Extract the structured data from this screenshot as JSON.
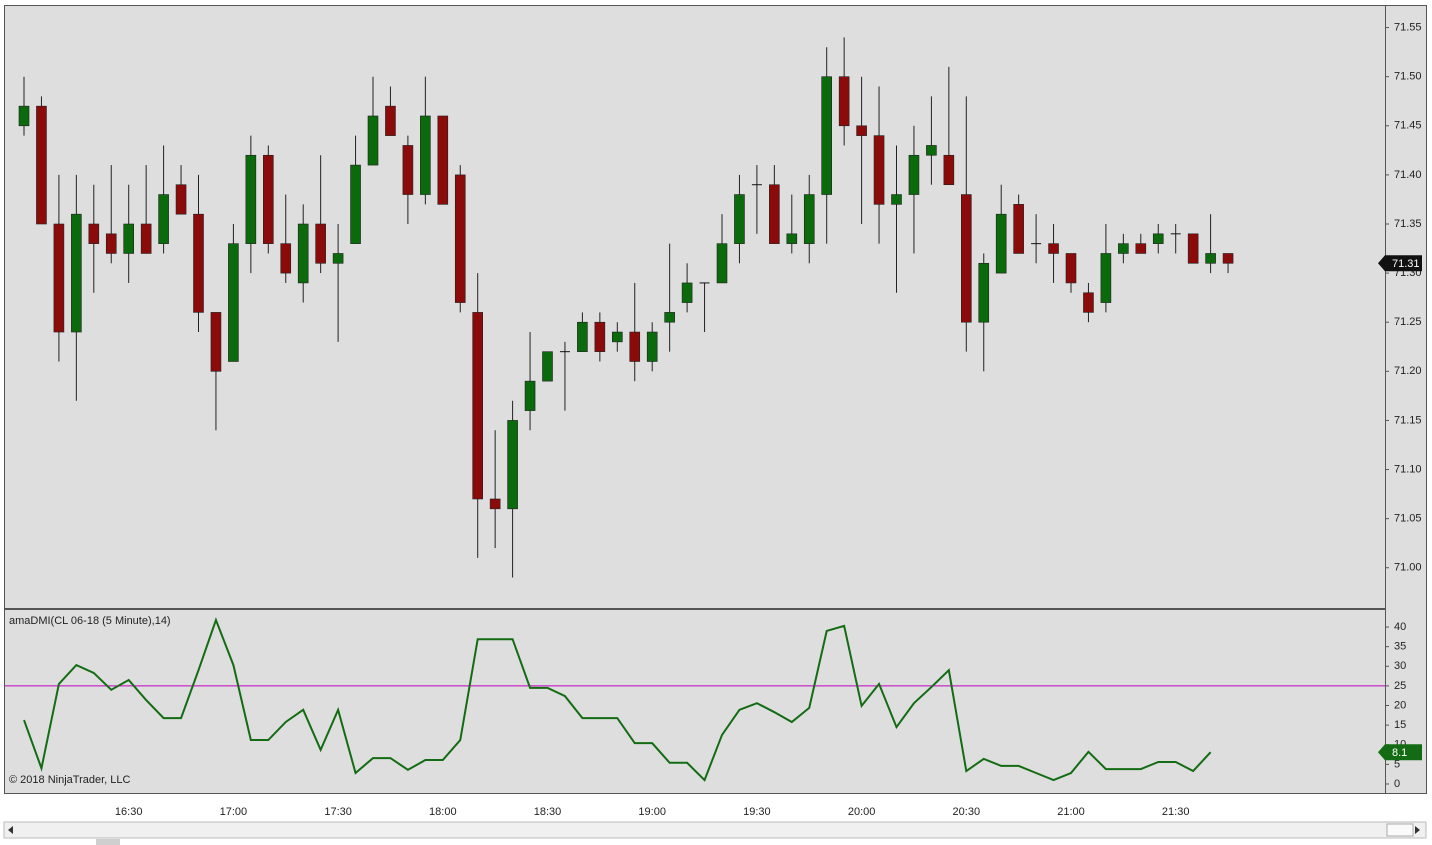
{
  "chart_data": [
    {
      "type": "candlestick",
      "categories": [
        null,
        null,
        null,
        null,
        null,
        null,
        "16:30",
        null,
        null,
        null,
        null,
        null,
        "17:00",
        null,
        null,
        null,
        null,
        null,
        "17:30",
        null,
        null,
        null,
        null,
        null,
        "18:00",
        null,
        null,
        null,
        null,
        null,
        "18:30",
        null,
        null,
        null,
        null,
        null,
        "19:00",
        null,
        null,
        null,
        null,
        null,
        "19:30",
        null,
        null,
        null,
        null,
        null,
        "20:00",
        null,
        null,
        null,
        null,
        null,
        "20:30",
        null,
        null,
        null,
        null,
        null,
        "21:00",
        null,
        null,
        null,
        null,
        null,
        "21:30",
        null,
        null,
        null
      ],
      "open": [
        71.45,
        71.47,
        71.35,
        71.24,
        71.35,
        71.34,
        71.32,
        71.35,
        71.33,
        71.39,
        71.36,
        71.26,
        71.21,
        71.33,
        71.42,
        71.33,
        71.29,
        71.35,
        71.31,
        71.33,
        71.41,
        71.47,
        71.43,
        71.38,
        71.46,
        71.4,
        71.26,
        71.07,
        71.06,
        71.16,
        71.19,
        71.22,
        71.22,
        71.25,
        71.23,
        71.24,
        71.21,
        71.25,
        71.27,
        71.29,
        71.29,
        71.33,
        71.39,
        71.39,
        71.33,
        71.33,
        71.38,
        71.5,
        71.45,
        71.44,
        71.37,
        71.38,
        71.42,
        71.42,
        71.38,
        71.25,
        71.3,
        71.37,
        71.33,
        71.33,
        71.32,
        71.28,
        71.27,
        71.32,
        71.33,
        71.33,
        71.34,
        71.34,
        71.31,
        71.32
      ],
      "high": [
        71.5,
        71.48,
        71.4,
        71.4,
        71.39,
        71.41,
        71.39,
        71.41,
        71.43,
        71.41,
        71.4,
        71.26,
        71.35,
        71.44,
        71.43,
        71.38,
        71.37,
        71.42,
        71.35,
        71.44,
        71.5,
        71.49,
        71.44,
        71.5,
        71.46,
        71.41,
        71.3,
        71.14,
        71.17,
        71.24,
        71.22,
        71.23,
        71.26,
        71.26,
        71.25,
        71.29,
        71.25,
        71.33,
        71.31,
        71.29,
        71.36,
        71.4,
        71.41,
        71.41,
        71.38,
        71.4,
        71.53,
        71.54,
        71.5,
        71.49,
        71.43,
        71.45,
        71.48,
        71.51,
        71.48,
        71.32,
        71.39,
        71.38,
        71.36,
        71.35,
        71.32,
        71.29,
        71.35,
        71.34,
        71.34,
        71.35,
        71.35,
        71.34,
        71.36,
        71.32
      ],
      "low": [
        71.44,
        71.35,
        71.21,
        71.17,
        71.28,
        71.31,
        71.29,
        71.32,
        71.32,
        71.36,
        71.24,
        71.14,
        71.21,
        71.3,
        71.32,
        71.29,
        71.27,
        71.3,
        71.23,
        71.33,
        71.41,
        71.44,
        71.35,
        71.37,
        71.37,
        71.26,
        71.01,
        71.02,
        70.99,
        71.14,
        71.19,
        71.16,
        71.22,
        71.21,
        71.22,
        71.19,
        71.2,
        71.22,
        71.26,
        71.24,
        71.29,
        71.31,
        71.34,
        71.33,
        71.32,
        71.31,
        71.33,
        71.43,
        71.35,
        71.33,
        71.28,
        71.32,
        71.39,
        71.39,
        71.22,
        71.2,
        71.3,
        71.32,
        71.31,
        71.29,
        71.28,
        71.25,
        71.26,
        71.31,
        71.32,
        71.32,
        71.32,
        71.31,
        71.3,
        71.3
      ],
      "close": [
        71.47,
        71.35,
        71.24,
        71.36,
        71.33,
        71.32,
        71.35,
        71.32,
        71.38,
        71.36,
        71.26,
        71.2,
        71.33,
        71.42,
        71.33,
        71.3,
        71.35,
        71.31,
        71.32,
        71.41,
        71.46,
        71.44,
        71.38,
        71.46,
        71.37,
        71.27,
        71.07,
        71.06,
        71.15,
        71.19,
        71.22,
        71.22,
        71.25,
        71.22,
        71.24,
        71.21,
        71.24,
        71.26,
        71.29,
        71.29,
        71.33,
        71.38,
        71.39,
        71.33,
        71.34,
        71.38,
        71.5,
        71.45,
        71.44,
        71.37,
        71.38,
        71.42,
        71.43,
        71.39,
        71.25,
        71.31,
        71.36,
        71.32,
        71.33,
        71.32,
        71.29,
        71.26,
        71.32,
        71.33,
        71.32,
        71.34,
        71.34,
        71.31,
        71.32,
        71.31
      ],
      "up_color": "#0b6a0b",
      "down_color": "#8b0a0a",
      "ylim": [
        70.959,
        71.573
      ],
      "yticks": [
        {
          "value": 71,
          "label": "71.00"
        },
        71.05,
        {
          "value": 71.1,
          "label": "71.10"
        },
        71.15,
        {
          "value": 71.2,
          "label": "71.20"
        },
        71.25,
        {
          "value": 71.3,
          "label": "71.30"
        },
        71.35,
        {
          "value": 71.4,
          "label": "71.40"
        },
        71.45,
        {
          "value": 71.5,
          "label": "71.50"
        },
        71.55
      ]
    },
    {
      "type": "line",
      "title": "amaDMI(CL 06-18 (5 Minute),14)",
      "annotation": "© 2018 NinjaTrader, LLC",
      "series": [
        {
          "color": "#136b13",
          "values": [
            16.3,
            4,
            25.5,
            30.3,
            28.3,
            24,
            26.5,
            21.4,
            16.8,
            16.8,
            29,
            41.8,
            30.3,
            11.2,
            11.2,
            15.8,
            18.9,
            8.7,
            18.9,
            2.8,
            6.6,
            6.6,
            3.6,
            6.1,
            6.1,
            11.2,
            36.9,
            36.9,
            36.9,
            24.5,
            24.5,
            22.4,
            16.8,
            16.8,
            16.8,
            10.4,
            10.4,
            5.4,
            5.4,
            1,
            12.5,
            18.9,
            20.6,
            18.3,
            15.8,
            19.4,
            39,
            40.3,
            19.9,
            25.5,
            14.5,
            20.6,
            24.7,
            29,
            3.3,
            6.4,
            4.6,
            4.6,
            2.8,
            1,
            2.8,
            8.2,
            3.8,
            3.8,
            3.8,
            5.6,
            5.6,
            3.3,
            8.1,
            null
          ]
        }
      ],
      "reference_line": {
        "value": 25,
        "color": "#c000c0"
      },
      "ylim": [
        -2.3,
        44.6
      ],
      "yticks": [
        0,
        5,
        10,
        15,
        20,
        25,
        30,
        35,
        40
      ]
    }
  ]
}
